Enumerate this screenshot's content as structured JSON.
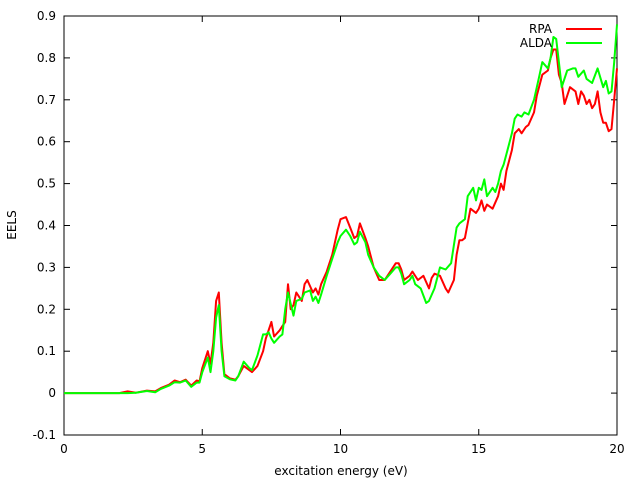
{
  "chart_data": {
    "type": "line",
    "title": "",
    "xlabel": "excitation energy (eV)",
    "ylabel": "EELS",
    "xlim": [
      0,
      20
    ],
    "ylim": [
      -0.1,
      0.9
    ],
    "xticks": [
      0,
      5,
      10,
      15,
      20
    ],
    "yticks": [
      -0.1,
      0,
      0.1,
      0.2,
      0.3,
      0.4,
      0.5,
      0.6,
      0.7,
      0.8,
      0.9
    ],
    "xtick_labels": [
      "0",
      "5",
      "10",
      "15",
      "20"
    ],
    "ytick_labels": [
      "-0.1",
      "0",
      "0.1",
      "0.2",
      "0.3",
      "0.4",
      "0.5",
      "0.6",
      "0.7",
      "0.8",
      "0.9"
    ],
    "grid": false,
    "legend_position": "top-right",
    "series": [
      {
        "name": "RPA",
        "color": "#ff0000",
        "points": [
          [
            0,
            0.0
          ],
          [
            2.0,
            0.0
          ],
          [
            2.3,
            0.004
          ],
          [
            2.6,
            0.001
          ],
          [
            3.0,
            0.006
          ],
          [
            3.3,
            0.004
          ],
          [
            3.5,
            0.012
          ],
          [
            3.8,
            0.02
          ],
          [
            4.0,
            0.03
          ],
          [
            4.2,
            0.026
          ],
          [
            4.4,
            0.032
          ],
          [
            4.6,
            0.018
          ],
          [
            4.8,
            0.03
          ],
          [
            4.9,
            0.028
          ],
          [
            5.0,
            0.06
          ],
          [
            5.2,
            0.1
          ],
          [
            5.3,
            0.07
          ],
          [
            5.4,
            0.12
          ],
          [
            5.5,
            0.22
          ],
          [
            5.6,
            0.24
          ],
          [
            5.7,
            0.12
          ],
          [
            5.8,
            0.045
          ],
          [
            6.0,
            0.035
          ],
          [
            6.2,
            0.032
          ],
          [
            6.3,
            0.04
          ],
          [
            6.5,
            0.065
          ],
          [
            6.7,
            0.055
          ],
          [
            6.8,
            0.05
          ],
          [
            7.0,
            0.065
          ],
          [
            7.2,
            0.1
          ],
          [
            7.3,
            0.13
          ],
          [
            7.4,
            0.15
          ],
          [
            7.5,
            0.17
          ],
          [
            7.6,
            0.135
          ],
          [
            7.8,
            0.15
          ],
          [
            7.9,
            0.16
          ],
          [
            8.0,
            0.17
          ],
          [
            8.1,
            0.26
          ],
          [
            8.2,
            0.2
          ],
          [
            8.3,
            0.21
          ],
          [
            8.4,
            0.24
          ],
          [
            8.6,
            0.22
          ],
          [
            8.7,
            0.26
          ],
          [
            8.8,
            0.27
          ],
          [
            9.0,
            0.24
          ],
          [
            9.1,
            0.25
          ],
          [
            9.2,
            0.235
          ],
          [
            9.3,
            0.26
          ],
          [
            9.5,
            0.29
          ],
          [
            9.7,
            0.33
          ],
          [
            9.9,
            0.39
          ],
          [
            10.0,
            0.415
          ],
          [
            10.2,
            0.42
          ],
          [
            10.35,
            0.395
          ],
          [
            10.5,
            0.37
          ],
          [
            10.6,
            0.375
          ],
          [
            10.7,
            0.405
          ],
          [
            10.9,
            0.37
          ],
          [
            11.0,
            0.35
          ],
          [
            11.2,
            0.3
          ],
          [
            11.4,
            0.27
          ],
          [
            11.6,
            0.27
          ],
          [
            11.8,
            0.29
          ],
          [
            12.0,
            0.31
          ],
          [
            12.1,
            0.31
          ],
          [
            12.2,
            0.295
          ],
          [
            12.3,
            0.27
          ],
          [
            12.5,
            0.28
          ],
          [
            12.6,
            0.29
          ],
          [
            12.8,
            0.27
          ],
          [
            13.0,
            0.28
          ],
          [
            13.2,
            0.25
          ],
          [
            13.3,
            0.275
          ],
          [
            13.4,
            0.285
          ],
          [
            13.6,
            0.28
          ],
          [
            13.8,
            0.25
          ],
          [
            13.9,
            0.24
          ],
          [
            14.1,
            0.27
          ],
          [
            14.2,
            0.33
          ],
          [
            14.3,
            0.365
          ],
          [
            14.4,
            0.365
          ],
          [
            14.5,
            0.37
          ],
          [
            14.7,
            0.44
          ],
          [
            14.9,
            0.43
          ],
          [
            15.0,
            0.44
          ],
          [
            15.1,
            0.46
          ],
          [
            15.2,
            0.435
          ],
          [
            15.3,
            0.45
          ],
          [
            15.5,
            0.44
          ],
          [
            15.7,
            0.47
          ],
          [
            15.8,
            0.5
          ],
          [
            15.9,
            0.485
          ],
          [
            16.0,
            0.53
          ],
          [
            16.2,
            0.58
          ],
          [
            16.3,
            0.62
          ],
          [
            16.45,
            0.63
          ],
          [
            16.55,
            0.62
          ],
          [
            16.7,
            0.635
          ],
          [
            16.8,
            0.64
          ],
          [
            17.0,
            0.67
          ],
          [
            17.1,
            0.71
          ],
          [
            17.3,
            0.76
          ],
          [
            17.5,
            0.77
          ],
          [
            17.6,
            0.8
          ],
          [
            17.7,
            0.82
          ],
          [
            17.8,
            0.82
          ],
          [
            17.9,
            0.76
          ],
          [
            18.0,
            0.74
          ],
          [
            18.1,
            0.69
          ],
          [
            18.3,
            0.73
          ],
          [
            18.5,
            0.72
          ],
          [
            18.6,
            0.69
          ],
          [
            18.7,
            0.72
          ],
          [
            18.8,
            0.71
          ],
          [
            18.9,
            0.69
          ],
          [
            19.0,
            0.7
          ],
          [
            19.1,
            0.68
          ],
          [
            19.2,
            0.69
          ],
          [
            19.3,
            0.72
          ],
          [
            19.4,
            0.67
          ],
          [
            19.5,
            0.645
          ],
          [
            19.6,
            0.645
          ],
          [
            19.7,
            0.625
          ],
          [
            19.8,
            0.63
          ],
          [
            19.9,
            0.7
          ],
          [
            20.0,
            0.775
          ]
        ]
      },
      {
        "name": "ALDA",
        "color": "#00ff00",
        "points": [
          [
            0,
            0.0
          ],
          [
            2.0,
            0.0
          ],
          [
            2.3,
            0.0
          ],
          [
            2.6,
            0.001
          ],
          [
            3.0,
            0.005
          ],
          [
            3.3,
            0.002
          ],
          [
            3.5,
            0.01
          ],
          [
            3.8,
            0.018
          ],
          [
            4.0,
            0.026
          ],
          [
            4.2,
            0.025
          ],
          [
            4.4,
            0.03
          ],
          [
            4.6,
            0.015
          ],
          [
            4.8,
            0.025
          ],
          [
            4.9,
            0.025
          ],
          [
            5.0,
            0.05
          ],
          [
            5.2,
            0.085
          ],
          [
            5.3,
            0.05
          ],
          [
            5.4,
            0.1
          ],
          [
            5.5,
            0.18
          ],
          [
            5.6,
            0.21
          ],
          [
            5.7,
            0.1
          ],
          [
            5.8,
            0.04
          ],
          [
            6.0,
            0.033
          ],
          [
            6.2,
            0.03
          ],
          [
            6.3,
            0.04
          ],
          [
            6.5,
            0.075
          ],
          [
            6.7,
            0.06
          ],
          [
            6.8,
            0.055
          ],
          [
            7.0,
            0.09
          ],
          [
            7.2,
            0.14
          ],
          [
            7.3,
            0.14
          ],
          [
            7.4,
            0.145
          ],
          [
            7.5,
            0.13
          ],
          [
            7.6,
            0.12
          ],
          [
            7.8,
            0.135
          ],
          [
            7.9,
            0.14
          ],
          [
            8.0,
            0.2
          ],
          [
            8.1,
            0.24
          ],
          [
            8.3,
            0.185
          ],
          [
            8.4,
            0.22
          ],
          [
            8.6,
            0.225
          ],
          [
            8.7,
            0.24
          ],
          [
            8.9,
            0.245
          ],
          [
            9.0,
            0.22
          ],
          [
            9.1,
            0.23
          ],
          [
            9.2,
            0.215
          ],
          [
            9.3,
            0.235
          ],
          [
            9.5,
            0.28
          ],
          [
            9.7,
            0.32
          ],
          [
            9.9,
            0.36
          ],
          [
            10.0,
            0.375
          ],
          [
            10.2,
            0.39
          ],
          [
            10.35,
            0.375
          ],
          [
            10.5,
            0.355
          ],
          [
            10.6,
            0.36
          ],
          [
            10.7,
            0.385
          ],
          [
            10.9,
            0.36
          ],
          [
            11.0,
            0.33
          ],
          [
            11.2,
            0.3
          ],
          [
            11.4,
            0.28
          ],
          [
            11.6,
            0.27
          ],
          [
            11.8,
            0.285
          ],
          [
            12.0,
            0.3
          ],
          [
            12.1,
            0.3
          ],
          [
            12.2,
            0.285
          ],
          [
            12.3,
            0.26
          ],
          [
            12.5,
            0.27
          ],
          [
            12.6,
            0.28
          ],
          [
            12.7,
            0.26
          ],
          [
            12.9,
            0.25
          ],
          [
            13.1,
            0.215
          ],
          [
            13.2,
            0.22
          ],
          [
            13.4,
            0.25
          ],
          [
            13.6,
            0.3
          ],
          [
            13.8,
            0.295
          ],
          [
            14.0,
            0.31
          ],
          [
            14.2,
            0.395
          ],
          [
            14.3,
            0.405
          ],
          [
            14.5,
            0.415
          ],
          [
            14.6,
            0.47
          ],
          [
            14.8,
            0.49
          ],
          [
            14.9,
            0.46
          ],
          [
            15.0,
            0.49
          ],
          [
            15.1,
            0.485
          ],
          [
            15.2,
            0.51
          ],
          [
            15.3,
            0.47
          ],
          [
            15.5,
            0.49
          ],
          [
            15.6,
            0.48
          ],
          [
            15.7,
            0.5
          ],
          [
            15.8,
            0.53
          ],
          [
            15.9,
            0.545
          ],
          [
            16.0,
            0.57
          ],
          [
            16.2,
            0.62
          ],
          [
            16.3,
            0.655
          ],
          [
            16.4,
            0.665
          ],
          [
            16.55,
            0.66
          ],
          [
            16.65,
            0.67
          ],
          [
            16.8,
            0.665
          ],
          [
            17.0,
            0.7
          ],
          [
            17.2,
            0.76
          ],
          [
            17.3,
            0.79
          ],
          [
            17.5,
            0.775
          ],
          [
            17.6,
            0.8
          ],
          [
            17.7,
            0.85
          ],
          [
            17.8,
            0.845
          ],
          [
            17.9,
            0.79
          ],
          [
            18.0,
            0.73
          ],
          [
            18.2,
            0.77
          ],
          [
            18.4,
            0.775
          ],
          [
            18.5,
            0.775
          ],
          [
            18.6,
            0.755
          ],
          [
            18.8,
            0.77
          ],
          [
            18.9,
            0.75
          ],
          [
            19.1,
            0.74
          ],
          [
            19.3,
            0.775
          ],
          [
            19.5,
            0.73
          ],
          [
            19.6,
            0.745
          ],
          [
            19.7,
            0.715
          ],
          [
            19.8,
            0.72
          ],
          [
            19.9,
            0.79
          ],
          [
            20.0,
            0.88
          ]
        ]
      }
    ]
  }
}
